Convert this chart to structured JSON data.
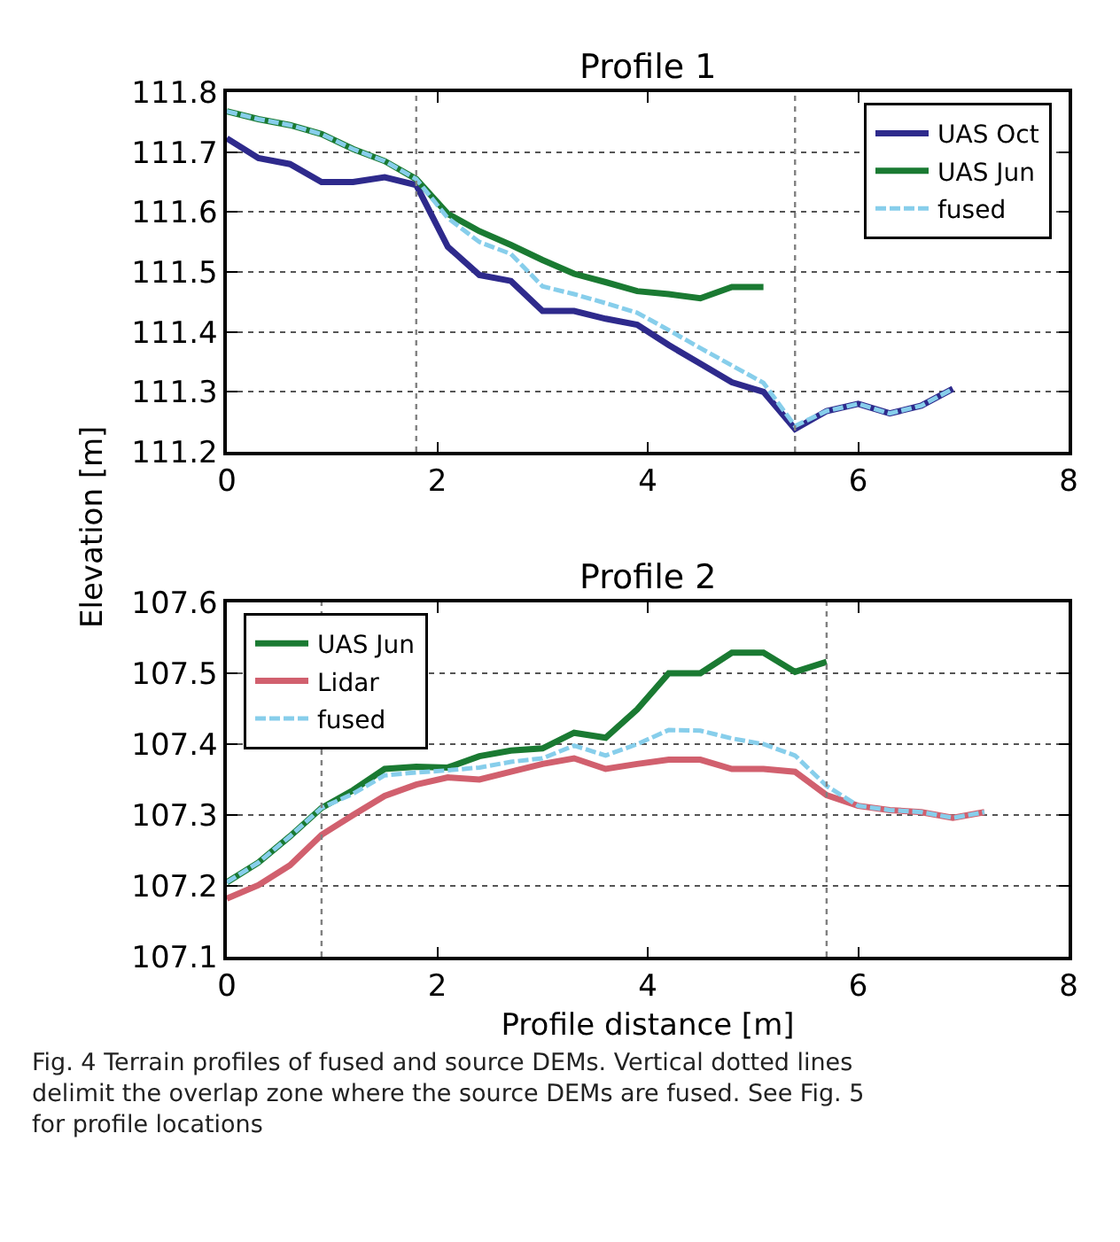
{
  "chart_data": [
    {
      "type": "line",
      "title": "Profile 1",
      "ylabel": "Elevation [m]",
      "xlim": [
        0,
        8
      ],
      "xticks": [
        0,
        2,
        4,
        6,
        8
      ],
      "ylim": [
        111.2,
        111.8
      ],
      "yticks": [
        111.2,
        111.3,
        111.4,
        111.5,
        111.6,
        111.7,
        111.8
      ],
      "grid": "y",
      "legend": "top right",
      "marker": "none",
      "series": [
        {
          "name": "UAS Oct",
          "color": "#2e2a8c",
          "line_style": "solid",
          "x": [
            0,
            0.3,
            0.6,
            0.9,
            1.2,
            1.5,
            1.8,
            2.1,
            2.4,
            2.7,
            3.0,
            3.3,
            3.6,
            3.9,
            4.2,
            4.5,
            4.8,
            5.1,
            5.4,
            5.7,
            6.0,
            6.3,
            6.6,
            6.9
          ],
          "values": [
            111.723,
            111.69,
            111.68,
            111.65,
            111.65,
            111.658,
            111.645,
            111.542,
            111.495,
            111.485,
            111.435,
            111.435,
            111.422,
            111.412,
            111.378,
            111.347,
            111.316,
            111.3,
            111.238,
            111.268,
            111.28,
            111.264,
            111.277,
            111.305
          ]
        },
        {
          "name": "UAS Jun",
          "color": "#1a7a32",
          "line_style": "solid",
          "x": [
            0,
            0.3,
            0.6,
            0.9,
            1.2,
            1.5,
            1.8,
            2.1,
            2.4,
            2.7,
            3.0,
            3.3,
            3.6,
            3.9,
            4.2,
            4.5,
            4.8,
            5.1
          ],
          "values": [
            111.768,
            111.755,
            111.745,
            111.73,
            111.705,
            111.685,
            111.655,
            111.597,
            111.568,
            111.545,
            111.52,
            111.497,
            111.483,
            111.468,
            111.463,
            111.456,
            111.475,
            111.475
          ]
        },
        {
          "name": "fused",
          "color": "#87ceeb",
          "line_style": "dashed",
          "x": [
            0,
            0.3,
            0.6,
            0.9,
            1.2,
            1.5,
            1.8,
            2.1,
            2.4,
            2.7,
            3.0,
            3.3,
            3.6,
            3.9,
            4.2,
            4.5,
            4.8,
            5.1,
            5.4,
            5.7,
            6.0,
            6.3,
            6.6,
            6.9
          ],
          "values": [
            111.768,
            111.755,
            111.745,
            111.73,
            111.705,
            111.685,
            111.655,
            111.59,
            111.55,
            111.53,
            111.476,
            111.463,
            111.448,
            111.432,
            111.403,
            111.373,
            111.344,
            111.315,
            111.243,
            111.268,
            111.28,
            111.264,
            111.277,
            111.305
          ]
        }
      ],
      "ref_lines": [
        {
          "axis": "x",
          "value": 1.8,
          "color": "#808080",
          "line_style": "dotted"
        },
        {
          "axis": "x",
          "value": 5.4,
          "color": "#808080",
          "line_style": "dotted"
        }
      ]
    },
    {
      "type": "line",
      "title": "Profile 2",
      "xlabel": "Profile distance [m]",
      "xlim": [
        0,
        8
      ],
      "xticks": [
        0,
        2,
        4,
        6,
        8
      ],
      "ylim": [
        107.1,
        107.6
      ],
      "yticks": [
        107.1,
        107.2,
        107.3,
        107.4,
        107.5,
        107.6
      ],
      "grid": "y",
      "legend": "top left",
      "marker": "none",
      "series": [
        {
          "name": "UAS Jun",
          "color": "#1a7a32",
          "line_style": "solid",
          "x": [
            0,
            0.3,
            0.6,
            0.9,
            1.2,
            1.5,
            1.8,
            2.1,
            2.4,
            2.7,
            3.0,
            3.3,
            3.6,
            3.9,
            4.2,
            4.5,
            4.8,
            5.1,
            5.4,
            5.7
          ],
          "values": [
            107.205,
            107.233,
            107.27,
            107.31,
            107.335,
            107.365,
            107.368,
            107.367,
            107.383,
            107.391,
            107.394,
            107.416,
            107.409,
            107.449,
            107.5,
            107.5,
            107.529,
            107.529,
            107.502,
            107.516
          ]
        },
        {
          "name": "Lidar",
          "color": "#d1606e",
          "line_style": "solid",
          "x": [
            0,
            0.3,
            0.6,
            0.9,
            1.2,
            1.5,
            1.8,
            2.1,
            2.4,
            2.7,
            3.0,
            3.3,
            3.6,
            3.9,
            4.2,
            4.5,
            4.8,
            5.1,
            5.4,
            5.7,
            6.0,
            6.3,
            6.6,
            6.9,
            7.2
          ],
          "values": [
            107.182,
            107.201,
            107.229,
            107.272,
            107.3,
            107.327,
            107.343,
            107.353,
            107.35,
            107.361,
            107.372,
            107.38,
            107.365,
            107.372,
            107.378,
            107.378,
            107.365,
            107.365,
            107.361,
            107.328,
            107.313,
            107.307,
            107.304,
            107.296,
            107.304
          ]
        },
        {
          "name": "fused",
          "color": "#87ceeb",
          "line_style": "dashed",
          "x": [
            0,
            0.3,
            0.6,
            0.9,
            1.2,
            1.5,
            1.8,
            2.1,
            2.4,
            2.7,
            3.0,
            3.3,
            3.6,
            3.9,
            4.2,
            4.5,
            4.8,
            5.1,
            5.4,
            5.7,
            6.0,
            6.3,
            6.6,
            6.9,
            7.2
          ],
          "values": [
            107.205,
            107.233,
            107.27,
            107.31,
            107.33,
            107.356,
            107.36,
            107.363,
            107.367,
            107.375,
            107.38,
            107.398,
            107.384,
            107.4,
            107.42,
            107.419,
            107.408,
            107.4,
            107.384,
            107.341,
            107.313,
            107.307,
            107.304,
            107.296,
            107.304
          ]
        }
      ],
      "ref_lines": [
        {
          "axis": "x",
          "value": 0.9,
          "color": "#808080",
          "line_style": "dotted"
        },
        {
          "axis": "x",
          "value": 5.7,
          "color": "#808080",
          "line_style": "dotted"
        }
      ],
      "annotations": [
        "Fig. 4 Terrain profiles of fused and source DEMs. Vertical dotted lines delimit the overlap zone where the source DEMs are fused. See Fig. 5 for profile locations"
      ]
    }
  ]
}
